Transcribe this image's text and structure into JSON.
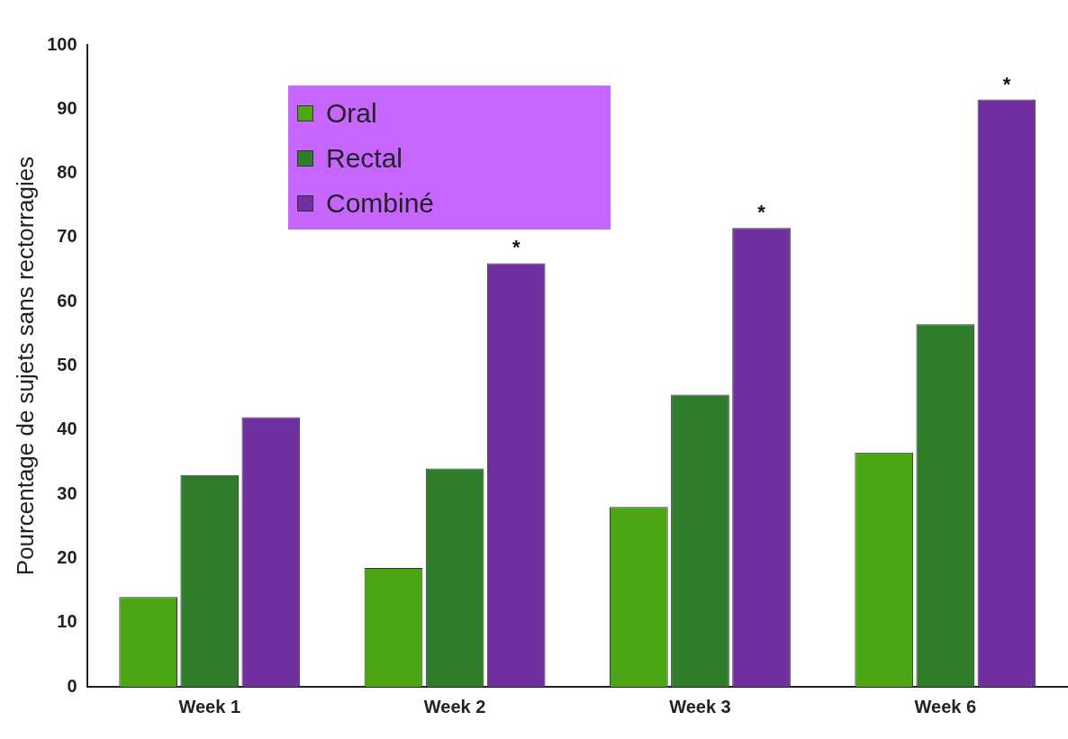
{
  "chart_data": {
    "type": "bar",
    "ylabel": "Pourcentage de sujets sans rectorragies",
    "categories": [
      "Week 1",
      "Week 2",
      "Week 3",
      "Week 6"
    ],
    "series": [
      {
        "name": "Oral",
        "color": "#4ca614",
        "values": [
          14,
          18.5,
          28,
          36.5
        ]
      },
      {
        "name": "Rectal",
        "color": "#2f7d2a",
        "values": [
          33,
          34,
          45.5,
          56.5
        ]
      },
      {
        "name": "Combiné",
        "color": "#7030a0",
        "values": [
          42,
          66,
          71.5,
          91.5
        ],
        "value_labels": [
          null,
          "*",
          "*",
          "*"
        ]
      }
    ],
    "ylim": [
      0,
      100
    ],
    "yticks": [
      0,
      10,
      20,
      30,
      40,
      50,
      60,
      70,
      80,
      90,
      100
    ],
    "grid": false,
    "legend": "top left"
  }
}
